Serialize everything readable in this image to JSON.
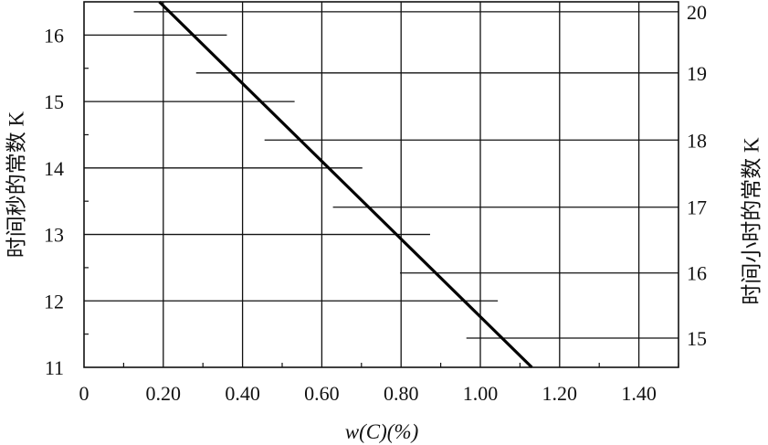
{
  "chart_data": {
    "type": "line",
    "xlabel": "w(C)(%)",
    "ylabel_left": "时间秒的常数 K",
    "ylabel_right": "时间小时的常数 K",
    "x_ticks": [
      "0",
      "0.20",
      "0.40",
      "0.60",
      "0.80",
      "1.00",
      "1.20",
      "1.40"
    ],
    "xlim": [
      0,
      1.5
    ],
    "left_axis": {
      "ticks": [
        "11",
        "12",
        "13",
        "14",
        "15",
        "16"
      ],
      "ylim": [
        11,
        16.5
      ]
    },
    "right_axis": {
      "ticks": [
        "15",
        "16",
        "17",
        "18",
        "19",
        "20"
      ],
      "tick_positions_left_units": [
        11.44,
        12.42,
        13.41,
        14.42,
        15.43,
        16.35
      ]
    },
    "series": [
      {
        "name": "",
        "points": [
          {
            "x": 0.19,
            "y": 16.5
          },
          {
            "x": 1.13,
            "y": 11.0
          }
        ]
      }
    ],
    "grid": true,
    "legend": "none"
  }
}
